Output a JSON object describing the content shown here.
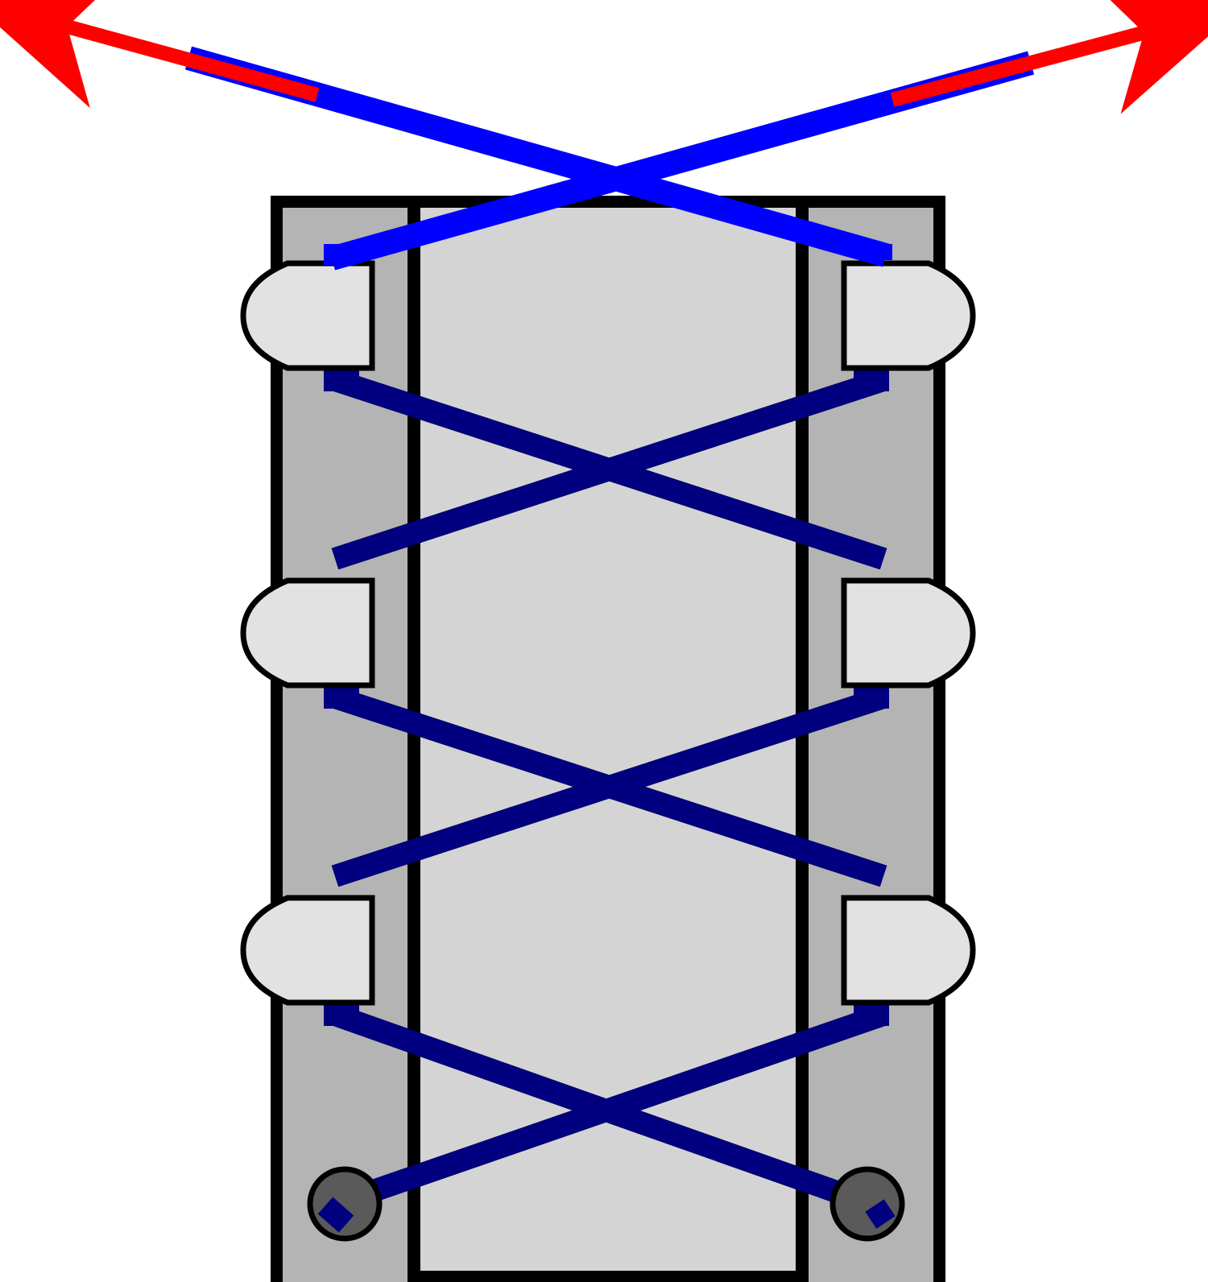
{
  "diagram": {
    "kind": "shoe-lacing-illustration",
    "lacing_style": "criss-cross",
    "eyelet_rows": 4,
    "hook_rows": 3,
    "hooks_per_side": 3,
    "bottom_eyelets": 2,
    "pull_directions": [
      "up-left",
      "up-right"
    ],
    "colors": {
      "background": "#ffffff",
      "outline": "#000000",
      "shoe_side_panel": "#b4b4b4",
      "tongue": "#d4d4d4",
      "hook": "#e2e2e2",
      "lace_lower": "#000080",
      "lace_upper": "#0000ff",
      "pull_arrow": "#ff0000",
      "eyelet_fill": "#5a5a5a"
    },
    "icons": {
      "hook": "speed-hook-icon",
      "eyelet": "eyelet-icon",
      "arrow": "pull-arrow-icon"
    }
  }
}
